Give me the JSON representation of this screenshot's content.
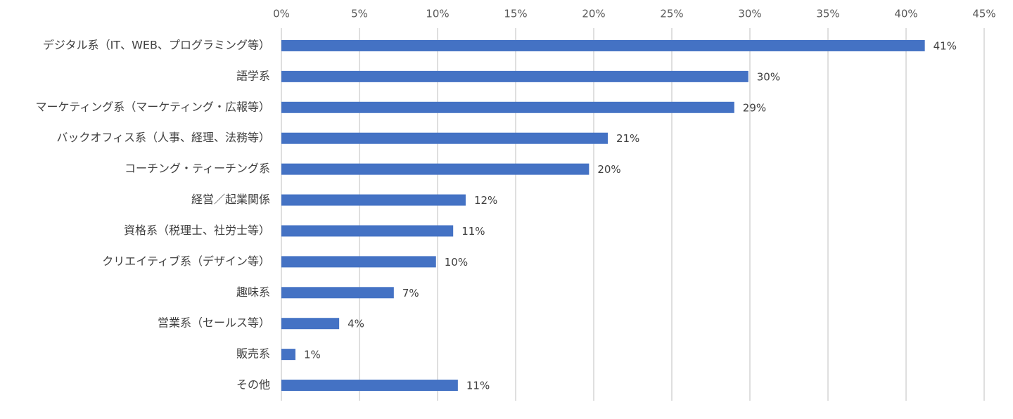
{
  "chart_data": {
    "type": "hbar",
    "categories": [
      "デジタル系（IT、WEB、プログラミング等）",
      "語学系",
      "マーケティング系（マーケティング・広報等）",
      "バックオフィス系（人事、経理、法務等）",
      "コーチング・ティーチング系",
      "経営／起業関係",
      "資格系（税理士、社労士等）",
      "クリエイティブ系（デザイン等）",
      "趣味系",
      "営業系（セールス等）",
      "販売系",
      "その他"
    ],
    "values": [
      41.2,
      29.9,
      29.0,
      20.9,
      19.7,
      11.8,
      11.0,
      9.9,
      7.2,
      3.7,
      0.9,
      11.3
    ],
    "value_labels": [
      "41%",
      "30%",
      "29%",
      "21%",
      "20%",
      "12%",
      "11%",
      "10%",
      "7%",
      "4%",
      "1%",
      "11%"
    ],
    "color": "#4472c4",
    "xlim": [
      0,
      45
    ],
    "xticks": [
      {
        "value": 0,
        "label": "0%"
      },
      {
        "value": 5,
        "label": "5%"
      },
      {
        "value": 10,
        "label": "10%"
      },
      {
        "value": 15,
        "label": "15%"
      },
      {
        "value": 20,
        "label": "20%"
      },
      {
        "value": 25,
        "label": "25%"
      },
      {
        "value": 30,
        "label": "30%"
      },
      {
        "value": 35,
        "label": "35%"
      },
      {
        "value": 40,
        "label": "40%"
      },
      {
        "value": 45,
        "label": "45%"
      }
    ],
    "grid": true
  }
}
